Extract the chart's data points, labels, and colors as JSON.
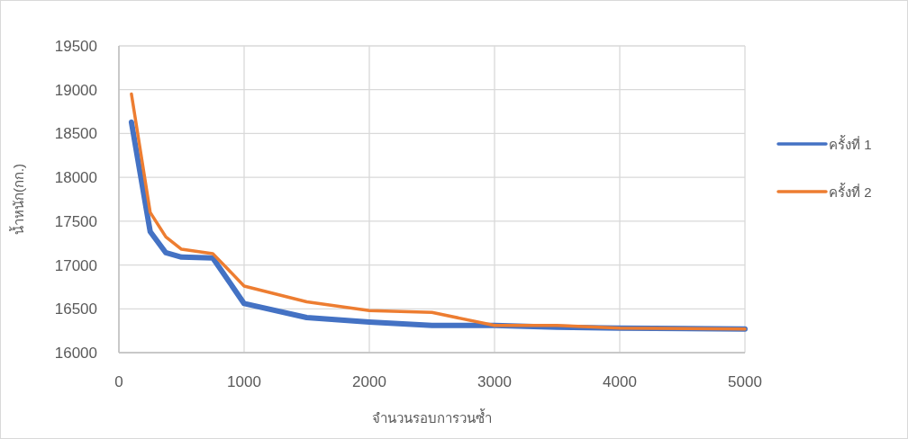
{
  "chart_data": {
    "type": "line",
    "xlabel": "จำนวนรอบการวนซ้ำ",
    "ylabel": "น้ำหนัก(กก.)",
    "x": [
      100,
      250,
      375,
      500,
      750,
      1000,
      1500,
      2000,
      2500,
      3000,
      3500,
      4000,
      5000
    ],
    "series": [
      {
        "name": "ครั้งที่ 1",
        "color": "#4472c4",
        "values": [
          18630,
          17380,
          17140,
          17090,
          17080,
          16560,
          16400,
          16350,
          16310,
          16310,
          16290,
          16280,
          16270
        ]
      },
      {
        "name": "ครั้งที่ 2",
        "color": "#ed7d31",
        "values": [
          18950,
          17600,
          17320,
          17180,
          17130,
          16760,
          16580,
          16480,
          16460,
          16310,
          16310,
          16280,
          16270
        ]
      }
    ],
    "xlim": [
      0,
      5000
    ],
    "xticks": [
      0,
      1000,
      2000,
      3000,
      4000,
      5000
    ],
    "ylim": [
      16000,
      19500
    ],
    "yticks": [
      16000,
      16500,
      17000,
      17500,
      18000,
      18500,
      19000,
      19500
    ],
    "grid": true,
    "legend": "right",
    "marker": "none",
    "line_style": "solid"
  }
}
